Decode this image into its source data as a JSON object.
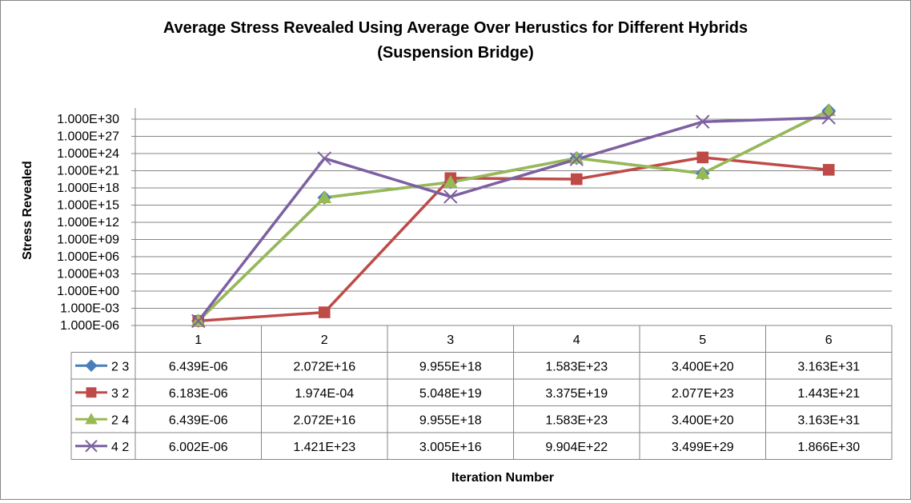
{
  "chart_data": {
    "type": "line",
    "title": "Average Stress Revealed Using Average Over Herustics for Different Hybrids",
    "subtitle": "(Suspension Bridge)",
    "xlabel": "Iteration Number",
    "ylabel": "Stress Revealed",
    "y_scale": "log",
    "ylim": [
      "1.000E-06",
      "1.000E+30"
    ],
    "y_ticks": [
      "1.000E+30",
      "1.000E+27",
      "1.000E+24",
      "1.000E+21",
      "1.000E+18",
      "1.000E+15",
      "1.000E+12",
      "1.000E+09",
      "1.000E+06",
      "1.000E+03",
      "1.000E+00",
      "1.000E-03",
      "1.000E-06"
    ],
    "grid": true,
    "legend": "data-table",
    "categories": [
      "1",
      "2",
      "3",
      "4",
      "5",
      "6"
    ],
    "series": [
      {
        "name": "2 3",
        "color": "#4a7ebb",
        "marker": "diamond",
        "labels": [
          "6.439E-06",
          "2.072E+16",
          "9.955E+18",
          "1.583E+23",
          "3.400E+20",
          "3.163E+31"
        ],
        "values": [
          6.439e-06,
          2.072e+16,
          9.955e+18,
          1.583e+23,
          3.4e+20,
          3.163e+31
        ]
      },
      {
        "name": "3 2",
        "color": "#be4b48",
        "marker": "square",
        "labels": [
          "6.183E-06",
          "1.974E-04",
          "5.048E+19",
          "3.375E+19",
          "2.077E+23",
          "1.443E+21"
        ],
        "values": [
          6.183e-06,
          0.0001974,
          5.048e+19,
          3.375e+19,
          2.077e+23,
          1.443e+21
        ]
      },
      {
        "name": "2 4",
        "color": "#98b954",
        "marker": "triangle",
        "labels": [
          "6.439E-06",
          "2.072E+16",
          "9.955E+18",
          "1.583E+23",
          "3.400E+20",
          "3.163E+31"
        ],
        "values": [
          6.439e-06,
          2.072e+16,
          9.955e+18,
          1.583e+23,
          3.4e+20,
          3.163e+31
        ]
      },
      {
        "name": "4 2",
        "color": "#7d60a0",
        "marker": "x",
        "labels": [
          "6.002E-06",
          "1.421E+23",
          "3.005E+16",
          "9.904E+22",
          "3.499E+29",
          "1.866E+30"
        ],
        "values": [
          6.002e-06,
          1.421e+23,
          3.005e+16,
          9.904e+22,
          3.499e+29,
          1.866e+30
        ]
      }
    ]
  }
}
